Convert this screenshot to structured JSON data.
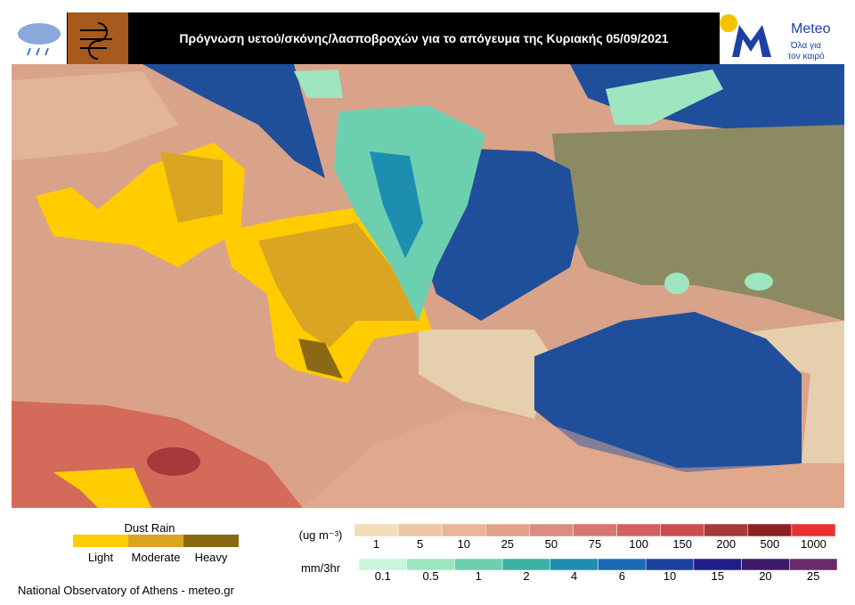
{
  "header": {
    "title": "Πρόγνωση υετού/σκόνης/λασποβροχών  για το απόγευμα της Κυριακής 05/09/2021",
    "logo": {
      "name": "Meteo",
      "tagline_1": "Όλα για",
      "tagline_2": "τον καιρό"
    }
  },
  "dust_rain_legend": {
    "title": "Dust Rain",
    "items": [
      {
        "label": "Light",
        "color": "#ffcc00"
      },
      {
        "label": "Moderate",
        "color": "#daa520"
      },
      {
        "label": "Heavy",
        "color": "#8b6914"
      }
    ]
  },
  "dust_scale": {
    "unit": "(ug m⁻³)",
    "ticks": [
      1,
      5,
      10,
      25,
      50,
      75,
      100,
      150,
      200,
      500,
      1000
    ],
    "colors": [
      "#f3dcb8",
      "#eec7a4",
      "#e8b596",
      "#e2a189",
      "#dc8c7e",
      "#d87672",
      "#d46060",
      "#cc4d4d",
      "#a8383a",
      "#8e1f22",
      "#e83030"
    ]
  },
  "precip_scale": {
    "unit": "mm/3hr",
    "ticks": [
      0.1,
      0.5,
      1,
      2,
      4,
      6,
      10,
      15,
      20,
      25
    ],
    "colors": [
      "#c8f5dc",
      "#9ee6c0",
      "#6cd0b0",
      "#3cb2a4",
      "#1e8eb0",
      "#1a6ab8",
      "#1c3fa0",
      "#1e1e8a",
      "#3c1a6a",
      "#6a2a6a"
    ]
  },
  "footer": "National Observatory of Athens - meteo.gr"
}
